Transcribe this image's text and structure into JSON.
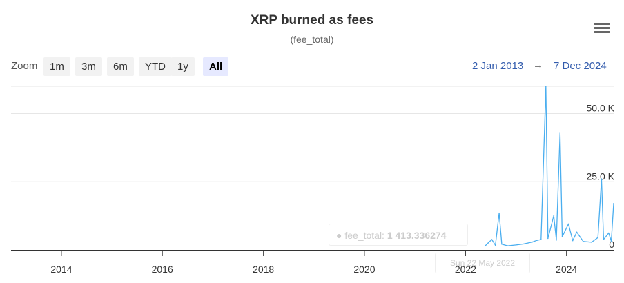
{
  "header": {
    "title": "XRP burned as fees",
    "subtitle": "(fee_total)"
  },
  "zoom": {
    "label": "Zoom",
    "buttons": [
      "1m",
      "3m",
      "6m",
      "YTD",
      "1y",
      "All"
    ],
    "active": "All"
  },
  "range": {
    "from": "2 Jan 2013",
    "arrow": "→",
    "to": "7 Dec 2024"
  },
  "tooltip": {
    "series_label": "● fee_total:",
    "value": "1 413.336274",
    "date": "Sun 22 May 2022"
  },
  "colors": {
    "series": "#4aaeef",
    "grid": "#e6e6e6",
    "axis": "#333333",
    "accent": "#335cad"
  },
  "chart_data": {
    "type": "line",
    "title": "XRP burned as fees",
    "subtitle": "(fee_total)",
    "xlabel": "",
    "ylabel": "",
    "x_range": [
      "2013-01-02",
      "2024-12-07"
    ],
    "ylim": [
      0,
      60000
    ],
    "y_ticks": [
      {
        "value": 0,
        "label": "0"
      },
      {
        "value": 25000,
        "label": "25.0 K"
      },
      {
        "value": 50000,
        "label": "50.0 K"
      }
    ],
    "x_ticks": [
      {
        "value": "2014-01-01",
        "label": "2014"
      },
      {
        "value": "2016-01-01",
        "label": "2016"
      },
      {
        "value": "2018-01-01",
        "label": "2018"
      },
      {
        "value": "2020-01-01",
        "label": "2020"
      },
      {
        "value": "2022-01-01",
        "label": "2022"
      },
      {
        "value": "2024-01-01",
        "label": "2024"
      }
    ],
    "grid": true,
    "series": [
      {
        "name": "fee_total",
        "points": [
          [
            "2022-05-22",
            1413
          ],
          [
            "2022-06-15",
            2600
          ],
          [
            "2022-07-10",
            3800
          ],
          [
            "2022-08-05",
            1700
          ],
          [
            "2022-09-01",
            13500
          ],
          [
            "2022-09-20",
            2100
          ],
          [
            "2022-11-01",
            1500
          ],
          [
            "2023-01-01",
            1800
          ],
          [
            "2023-03-01",
            2200
          ],
          [
            "2023-05-01",
            2900
          ],
          [
            "2023-06-01",
            3500
          ],
          [
            "2023-07-01",
            3800
          ],
          [
            "2023-08-05",
            60000
          ],
          [
            "2023-08-20",
            4200
          ],
          [
            "2023-10-01",
            12500
          ],
          [
            "2023-10-20",
            3600
          ],
          [
            "2023-11-15",
            43000
          ],
          [
            "2023-12-01",
            4800
          ],
          [
            "2024-01-15",
            9500
          ],
          [
            "2024-02-15",
            3400
          ],
          [
            "2024-03-15",
            6500
          ],
          [
            "2024-05-01",
            3100
          ],
          [
            "2024-07-01",
            2800
          ],
          [
            "2024-08-15",
            4500
          ],
          [
            "2024-09-10",
            26000
          ],
          [
            "2024-09-25",
            3800
          ],
          [
            "2024-11-01",
            6200
          ],
          [
            "2024-11-20",
            3200
          ],
          [
            "2024-12-07",
            17000
          ]
        ]
      }
    ]
  }
}
